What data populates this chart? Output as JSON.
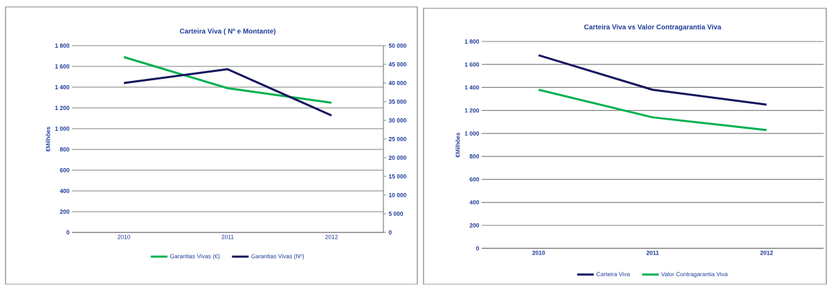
{
  "chart_data": [
    {
      "type": "line",
      "title": "Carteira Viva ( Nº e Montante)",
      "ylabel": "€Milhões",
      "categories": [
        "2010",
        "2011",
        "2012"
      ],
      "series": [
        {
          "name": "Garantias Vivas (€)",
          "color": "#00b050",
          "values": [
            1690,
            1390,
            1250
          ]
        },
        {
          "name": "Garantias Vivas (Nº)",
          "color": "#14145e",
          "values": [
            40000,
            43700,
            31300
          ],
          "axis": "y2"
        }
      ],
      "ylim": [
        0,
        1800
      ],
      "yticks": [
        0,
        200,
        400,
        600,
        800,
        {
          "value": 1000,
          "label": "1 000"
        },
        {
          "value": 1200,
          "label": "1 200"
        },
        {
          "value": 1400,
          "label": "1 400"
        },
        {
          "value": 1600,
          "label": "1 600"
        },
        {
          "value": 1800,
          "label": "1 800"
        }
      ],
      "y2lim": [
        0,
        50000
      ],
      "y2ticks": [
        0,
        {
          "value": 5000,
          "label": "5 000"
        },
        {
          "value": 10000,
          "label": "10 000"
        },
        {
          "value": 15000,
          "label": "15 000"
        },
        {
          "value": 20000,
          "label": "20 000"
        },
        {
          "value": 25000,
          "label": "25 000"
        },
        {
          "value": 30000,
          "label": "30 000"
        },
        {
          "value": 35000,
          "label": "35 000"
        },
        {
          "value": 40000,
          "label": "40 000"
        },
        {
          "value": 45000,
          "label": "45 000"
        },
        {
          "value": 50000,
          "label": "50 000"
        }
      ],
      "grid": "y",
      "legend": "bottom",
      "line_style": "solid",
      "marker": "none"
    },
    {
      "type": "line",
      "title": "Carteira Viva vs Valor Contragarantia  Viva",
      "ylabel": "€Milhões",
      "categories": [
        "2010",
        "2011",
        "2012"
      ],
      "series": [
        {
          "name": "Carteira Viva",
          "color": "#14145e",
          "values": [
            1680,
            1380,
            1250
          ]
        },
        {
          "name": "Valor Contragarantia Viva",
          "color": "#00b050",
          "values": [
            1380,
            1140,
            1030
          ]
        }
      ],
      "ylim": [
        0,
        1800
      ],
      "yticks": [
        0,
        200,
        400,
        600,
        800,
        {
          "value": 1000,
          "label": "1 000"
        },
        {
          "value": 1200,
          "label": "1 200"
        },
        {
          "value": 1400,
          "label": "1 400"
        },
        {
          "value": 1600,
          "label": "1 600"
        },
        {
          "value": 1800,
          "label": "1 800"
        }
      ],
      "grid": "y",
      "legend": "bottom",
      "line_style": "solid",
      "marker": "none"
    }
  ]
}
